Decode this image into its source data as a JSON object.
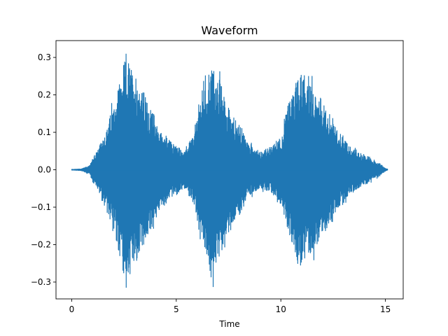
{
  "chart_data": {
    "type": "area",
    "title": "Waveform",
    "xlabel": "Time",
    "ylabel": "",
    "xlim": [
      -0.75,
      15.85
    ],
    "ylim": [
      -0.345,
      0.345
    ],
    "xticks": [
      0,
      5,
      10,
      15
    ],
    "xtick_labels": [
      "0",
      "5",
      "10",
      "15"
    ],
    "yticks": [
      -0.3,
      -0.2,
      -0.1,
      0.0,
      0.1,
      0.2,
      0.3
    ],
    "ytick_labels": [
      "−0.3",
      "−0.2",
      "−0.1",
      "0.0",
      "0.1",
      "0.2",
      "0.3"
    ],
    "grid": false,
    "color": "#1f77b4",
    "duration_s": 15.1,
    "series": [
      {
        "envelope_points": [
          {
            "t": 0.0,
            "amp": 0.001
          },
          {
            "t": 0.4,
            "amp": 0.002
          },
          {
            "t": 0.8,
            "amp": 0.01
          },
          {
            "t": 1.2,
            "amp": 0.05
          },
          {
            "t": 1.6,
            "amp": 0.1
          },
          {
            "t": 2.0,
            "amp": 0.17
          },
          {
            "t": 2.3,
            "amp": 0.24
          },
          {
            "t": 2.6,
            "amp": 0.3
          },
          {
            "t": 3.0,
            "amp": 0.26
          },
          {
            "t": 3.4,
            "amp": 0.21
          },
          {
            "t": 3.8,
            "amp": 0.16
          },
          {
            "t": 4.3,
            "amp": 0.1
          },
          {
            "t": 4.9,
            "amp": 0.07
          },
          {
            "t": 5.4,
            "amp": 0.05
          },
          {
            "t": 5.8,
            "amp": 0.09
          },
          {
            "t": 6.2,
            "amp": 0.2
          },
          {
            "t": 6.7,
            "amp": 0.28
          },
          {
            "t": 7.0,
            "amp": 0.24
          },
          {
            "t": 7.5,
            "amp": 0.17
          },
          {
            "t": 8.0,
            "amp": 0.12
          },
          {
            "t": 8.5,
            "amp": 0.07
          },
          {
            "t": 9.0,
            "amp": 0.05
          },
          {
            "t": 9.5,
            "amp": 0.06
          },
          {
            "t": 10.0,
            "amp": 0.09
          },
          {
            "t": 10.5,
            "amp": 0.2
          },
          {
            "t": 10.9,
            "amp": 0.26
          },
          {
            "t": 11.3,
            "amp": 0.23
          },
          {
            "t": 11.8,
            "amp": 0.2
          },
          {
            "t": 12.3,
            "amp": 0.15
          },
          {
            "t": 12.8,
            "amp": 0.1
          },
          {
            "t": 13.4,
            "amp": 0.06
          },
          {
            "t": 14.0,
            "amp": 0.04
          },
          {
            "t": 14.6,
            "amp": 0.02
          },
          {
            "t": 15.1,
            "amp": 0.002
          }
        ],
        "peak_max": 0.31,
        "peak_min": -0.315
      }
    ]
  }
}
